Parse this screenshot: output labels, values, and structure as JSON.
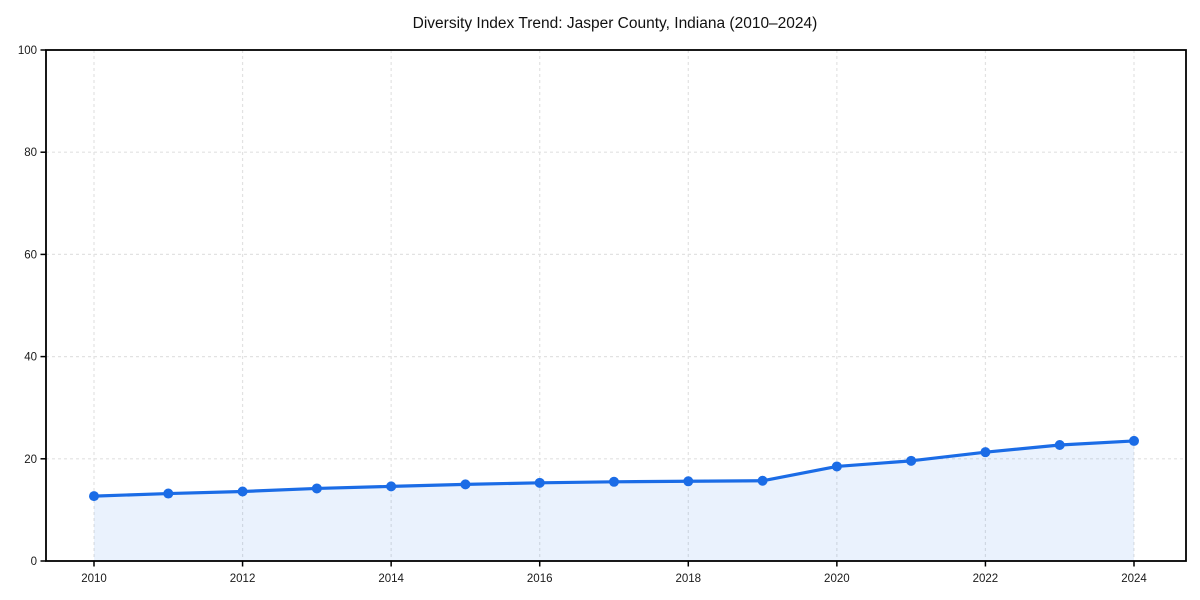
{
  "figure": {
    "background_color": "#ffffff"
  },
  "chart_data": {
    "type": "line",
    "title": "Diversity Index Trend: Jasper County, Indiana (2010–2024)",
    "x": [
      2010,
      2011,
      2012,
      2013,
      2014,
      2015,
      2016,
      2017,
      2018,
      2019,
      2020,
      2021,
      2022,
      2023,
      2024
    ],
    "series": [
      {
        "name": "Diversity Index",
        "values": [
          12.7,
          13.2,
          13.6,
          14.2,
          14.6,
          15.0,
          15.3,
          15.5,
          15.6,
          15.7,
          18.5,
          19.6,
          21.3,
          22.7,
          23.5
        ]
      }
    ],
    "xlabel": "",
    "ylabel": "",
    "ylim": [
      0,
      100
    ],
    "xticks": [
      2010,
      2012,
      2014,
      2016,
      2018,
      2020,
      2022,
      2024
    ],
    "yticks": [
      0,
      20,
      40,
      60,
      80,
      100
    ],
    "grid": "dashed-both-axes",
    "legend": "none",
    "marker": "circle",
    "area_fill": true,
    "colors": {
      "line": "#1b6ce6",
      "marker": "#1b6ce6",
      "area": "#1b6ce6",
      "area_opacity": 0.09,
      "grid": "#e2e2e2",
      "axis": "#000000",
      "title_text": "#111111",
      "tick_text": "#1a1a1a"
    }
  }
}
